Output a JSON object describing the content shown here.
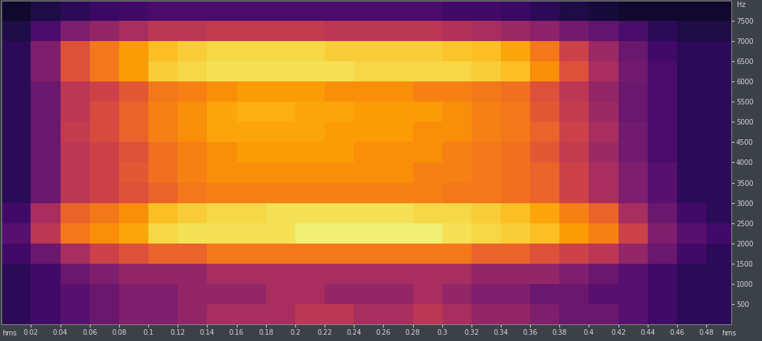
{
  "chart_data": {
    "type": "heatmap",
    "xlabel": "hms",
    "ylabel": "Hz",
    "xlim": [
      0,
      0.497
    ],
    "ylim": [
      0,
      8000
    ],
    "xticks": [
      0.02,
      0.04,
      0.06,
      0.08,
      0.1,
      0.12,
      0.14,
      0.16,
      0.18,
      0.2,
      0.22,
      0.24,
      0.26,
      0.28,
      0.3,
      0.32,
      0.34,
      0.36,
      0.38,
      0.4,
      0.42,
      0.44,
      0.46,
      0.48
    ],
    "yticks": [
      500,
      1000,
      1500,
      2000,
      2500,
      3000,
      3500,
      4000,
      4500,
      5000,
      5500,
      6000,
      6500,
      7000,
      7500
    ],
    "x_edges": [
      0,
      0.02,
      0.04,
      0.06,
      0.08,
      0.1,
      0.12,
      0.14,
      0.16,
      0.18,
      0.2,
      0.22,
      0.24,
      0.26,
      0.28,
      0.3,
      0.32,
      0.34,
      0.36,
      0.38,
      0.4,
      0.42,
      0.44,
      0.46,
      0.48,
      0.5
    ],
    "y_edges": [
      0,
      500,
      1000,
      1500,
      2000,
      2500,
      3000,
      3500,
      4000,
      4500,
      5000,
      5500,
      6000,
      6500,
      7000,
      7500,
      8000
    ],
    "clim": [
      0,
      100
    ],
    "cells": [
      [
        15,
        20,
        25,
        30,
        35,
        35,
        40,
        45,
        45,
        45,
        50,
        50,
        45,
        45,
        50,
        45,
        40,
        40,
        35,
        30,
        30,
        25,
        20,
        15,
        15
      ],
      [
        15,
        20,
        25,
        30,
        35,
        35,
        40,
        40,
        40,
        45,
        45,
        40,
        40,
        40,
        45,
        40,
        35,
        35,
        30,
        30,
        25,
        25,
        20,
        15,
        15
      ],
      [
        15,
        20,
        30,
        35,
        40,
        40,
        40,
        45,
        45,
        45,
        45,
        45,
        45,
        45,
        45,
        45,
        40,
        40,
        40,
        35,
        30,
        25,
        20,
        15,
        15
      ],
      [
        20,
        30,
        45,
        55,
        60,
        65,
        65,
        70,
        70,
        70,
        70,
        70,
        70,
        70,
        70,
        70,
        65,
        65,
        60,
        55,
        50,
        40,
        30,
        20,
        15
      ],
      [
        25,
        50,
        70,
        75,
        80,
        90,
        92,
        92,
        92,
        92,
        95,
        95,
        95,
        95,
        95,
        92,
        90,
        88,
        85,
        78,
        72,
        55,
        35,
        25,
        20
      ],
      [
        20,
        45,
        65,
        70,
        75,
        85,
        88,
        90,
        90,
        92,
        92,
        92,
        92,
        92,
        90,
        90,
        88,
        85,
        80,
        72,
        65,
        45,
        30,
        20,
        15
      ],
      [
        15,
        30,
        50,
        55,
        60,
        65,
        70,
        72,
        72,
        72,
        72,
        72,
        72,
        72,
        72,
        70,
        70,
        68,
        65,
        55,
        45,
        35,
        25,
        15,
        15
      ],
      [
        15,
        30,
        50,
        55,
        62,
        68,
        72,
        75,
        75,
        75,
        75,
        75,
        75,
        75,
        72,
        72,
        70,
        68,
        65,
        55,
        45,
        35,
        25,
        15,
        15
      ],
      [
        15,
        30,
        50,
        55,
        60,
        68,
        72,
        75,
        78,
        78,
        78,
        78,
        75,
        75,
        75,
        72,
        70,
        68,
        62,
        52,
        42,
        32,
        22,
        15,
        15
      ],
      [
        15,
        30,
        52,
        58,
        65,
        72,
        75,
        80,
        80,
        80,
        80,
        78,
        78,
        78,
        75,
        75,
        72,
        70,
        65,
        55,
        45,
        32,
        22,
        15,
        15
      ],
      [
        15,
        30,
        50,
        58,
        65,
        72,
        75,
        80,
        82,
        82,
        80,
        80,
        78,
        78,
        78,
        75,
        72,
        70,
        62,
        52,
        42,
        30,
        22,
        15,
        15
      ],
      [
        15,
        30,
        50,
        55,
        62,
        70,
        72,
        75,
        78,
        78,
        78,
        75,
        75,
        75,
        72,
        72,
        70,
        68,
        60,
        50,
        40,
        30,
        22,
        15,
        15
      ],
      [
        15,
        35,
        60,
        70,
        78,
        88,
        90,
        92,
        92,
        92,
        92,
        92,
        90,
        90,
        90,
        90,
        88,
        85,
        75,
        60,
        45,
        32,
        22,
        15,
        15
      ],
      [
        15,
        35,
        60,
        70,
        78,
        85,
        88,
        90,
        90,
        90,
        90,
        88,
        88,
        88,
        88,
        86,
        85,
        80,
        70,
        55,
        42,
        30,
        20,
        15,
        15
      ],
      [
        12,
        22,
        35,
        40,
        45,
        50,
        50,
        52,
        52,
        52,
        52,
        50,
        50,
        50,
        50,
        48,
        45,
        42,
        38,
        32,
        28,
        22,
        15,
        12,
        12
      ],
      [
        8,
        12,
        15,
        18,
        20,
        22,
        22,
        22,
        22,
        22,
        22,
        22,
        22,
        22,
        22,
        20,
        20,
        18,
        15,
        12,
        10,
        8,
        8,
        8,
        8
      ]
    ]
  }
}
